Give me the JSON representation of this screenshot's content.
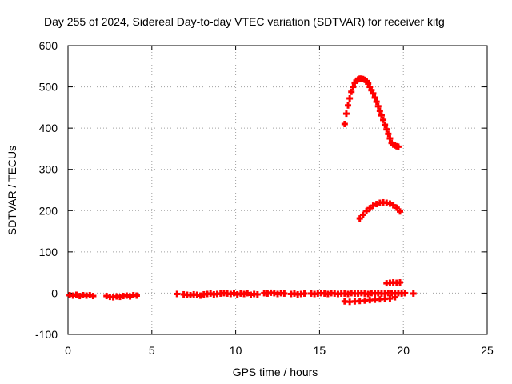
{
  "chart_data": {
    "type": "scatter",
    "title": "Day 255 of 2024, Sidereal Day-to-day VTEC variation (SDTVAR) for receiver kitg",
    "xlabel": "GPS time / hours",
    "ylabel": "SDTVAR / TECUs",
    "xlim": [
      0,
      25
    ],
    "ylim": [
      -100,
      600
    ],
    "xticks": [
      0,
      5,
      10,
      15,
      20,
      25
    ],
    "yticks": [
      -100,
      0,
      100,
      200,
      300,
      400,
      500,
      600
    ],
    "grid": true,
    "marker_color": "#ff0000",
    "segments": [
      {
        "x": [
          0.1,
          0.3,
          0.5,
          0.7,
          0.9,
          1.1,
          1.3,
          1.5
        ],
        "y": [
          -5,
          -6,
          -4,
          -7,
          -5,
          -6,
          -5,
          -7
        ]
      },
      {
        "x": [
          2.3,
          2.5,
          2.7,
          2.9,
          3.1,
          3.3,
          3.5,
          3.7,
          3.9,
          4.1
        ],
        "y": [
          -7,
          -9,
          -10,
          -8,
          -9,
          -7,
          -6,
          -8,
          -5,
          -6
        ]
      },
      {
        "x": [
          6.5
        ],
        "y": [
          -2
        ]
      },
      {
        "x": [
          6.9,
          7.1,
          7.3,
          7.5,
          7.7,
          7.9,
          8.1,
          8.3,
          8.5,
          8.7,
          8.9,
          9.1,
          9.3,
          9.5,
          9.7,
          9.9,
          10.1,
          10.3,
          10.5,
          10.7,
          10.9,
          11.1,
          11.3
        ],
        "y": [
          -3,
          -4,
          -5,
          -3,
          -4,
          -6,
          -3,
          -2,
          -1,
          -3,
          -2,
          -1,
          0,
          -1,
          -2,
          0,
          -3,
          -1,
          -2,
          0,
          -4,
          -2,
          -3
        ]
      },
      {
        "x": [
          11.7,
          11.9,
          12.1,
          12.3,
          12.5,
          12.7,
          12.9
        ],
        "y": [
          0,
          -1,
          1,
          0,
          -2,
          0,
          -1
        ]
      },
      {
        "x": [
          13.3,
          13.5,
          13.7,
          13.9,
          14.1
        ],
        "y": [
          -2,
          -1,
          -3,
          -2,
          -1
        ]
      },
      {
        "x": [
          14.5,
          14.7,
          14.9,
          15.1,
          15.3,
          15.5,
          15.7,
          15.9,
          16.1,
          16.3,
          16.5,
          16.7,
          16.9,
          17.1,
          17.3,
          17.5,
          17.7,
          17.9,
          18.1,
          18.3,
          18.5,
          18.7,
          18.9,
          19.1,
          19.3,
          19.5,
          19.7,
          19.9
        ],
        "y": [
          -1,
          -2,
          -1,
          0,
          -1,
          -2,
          0,
          -1,
          -2,
          -1,
          -1,
          -2,
          0,
          -1,
          -1,
          0,
          -1,
          -2,
          0,
          -1,
          0,
          -1,
          -1,
          0,
          0,
          -1,
          0,
          -1
        ]
      },
      {
        "x": [
          20.1,
          20.6
        ],
        "y": [
          0,
          -1
        ]
      },
      {
        "x": [
          16.5,
          16.8,
          17.1,
          17.4,
          17.7,
          18.0,
          18.3,
          18.6,
          18.9,
          19.2,
          19.5
        ],
        "y": [
          -20,
          -21,
          -20,
          -19,
          -18,
          -17,
          -16,
          -15,
          -14,
          -13,
          -10
        ]
      },
      {
        "x": [
          19.0,
          19.2,
          19.4,
          19.6,
          19.8
        ],
        "y": [
          24,
          25,
          26,
          25,
          26
        ]
      },
      {
        "x": [
          16.5,
          16.6,
          16.7,
          16.8,
          16.9,
          17.0,
          17.1,
          17.2,
          17.3,
          17.4,
          17.5,
          17.6,
          17.7,
          17.8,
          17.9,
          18.0,
          18.1,
          18.2,
          18.3,
          18.4,
          18.5,
          18.6,
          18.7,
          18.8,
          18.9,
          19.0,
          19.1,
          19.2,
          19.3,
          19.4,
          19.5,
          19.6,
          19.7
        ],
        "y": [
          410,
          435,
          455,
          472,
          488,
          500,
          510,
          515,
          518,
          520,
          520,
          519,
          517,
          514,
          508,
          500,
          492,
          484,
          474,
          464,
          453,
          442,
          431,
          420,
          408,
          397,
          386,
          375,
          364,
          360,
          358,
          356,
          355
        ]
      },
      {
        "x": [
          17.4,
          17.6,
          17.8,
          18.0,
          18.2,
          18.4,
          18.6,
          18.8,
          19.0,
          19.2,
          19.4,
          19.6,
          19.8
        ],
        "y": [
          181,
          190,
          199,
          206,
          212,
          216,
          219,
          220,
          219,
          217,
          213,
          207,
          198
        ]
      }
    ]
  }
}
